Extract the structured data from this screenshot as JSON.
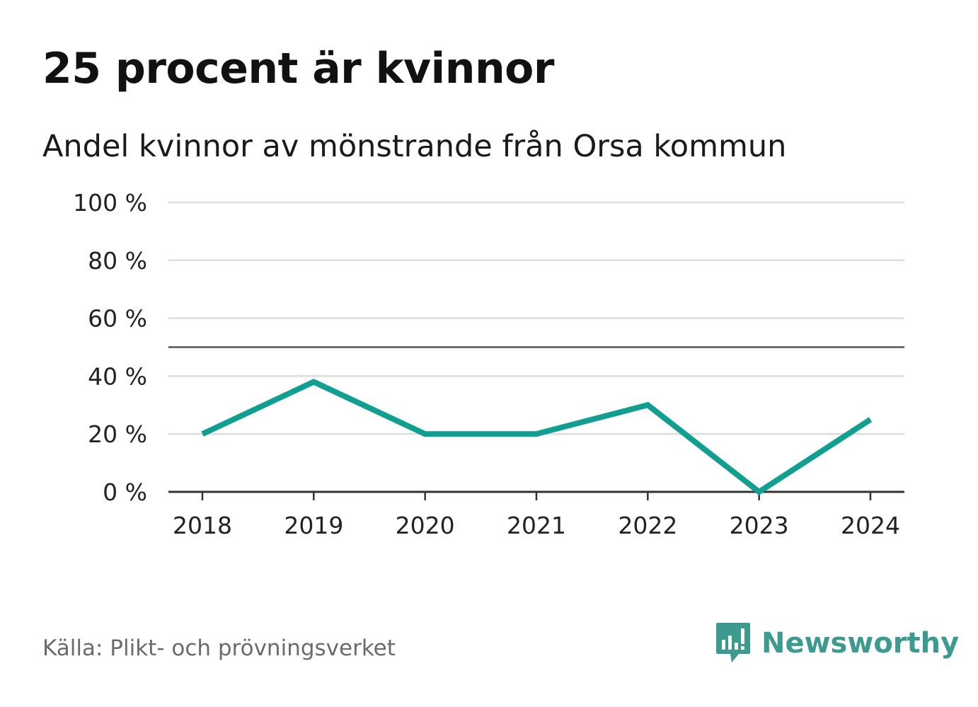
{
  "header": {
    "title": "25 procent är kvinnor",
    "subtitle": "Andel kvinnor av mönstrande från Orsa kommun"
  },
  "footer": {
    "source": "Källa: Plikt- och prövningsverket",
    "brand": "Newsworthy"
  },
  "colors": {
    "line": "#119f91",
    "grid": "#dddddd",
    "axis": "#333333",
    "reference": "#555555",
    "brand": "#3d9a8f"
  },
  "chart_data": {
    "type": "line",
    "title": "25 procent är kvinnor",
    "subtitle": "Andel kvinnor av mönstrande från Orsa kommun",
    "x": [
      "2018",
      "2019",
      "2020",
      "2021",
      "2022",
      "2023",
      "2024"
    ],
    "series": [
      {
        "name": "Andel kvinnor",
        "values": [
          20,
          38,
          20,
          20,
          30,
          0,
          25
        ]
      }
    ],
    "yticks": [
      0,
      20,
      40,
      60,
      80,
      100
    ],
    "ytick_labels": [
      "0 %",
      "20 %",
      "40 %",
      "60 %",
      "80 %",
      "100 %"
    ],
    "ylim": [
      0,
      100
    ],
    "reference_line": 50,
    "grid": true,
    "xlabel": "",
    "ylabel": ""
  }
}
